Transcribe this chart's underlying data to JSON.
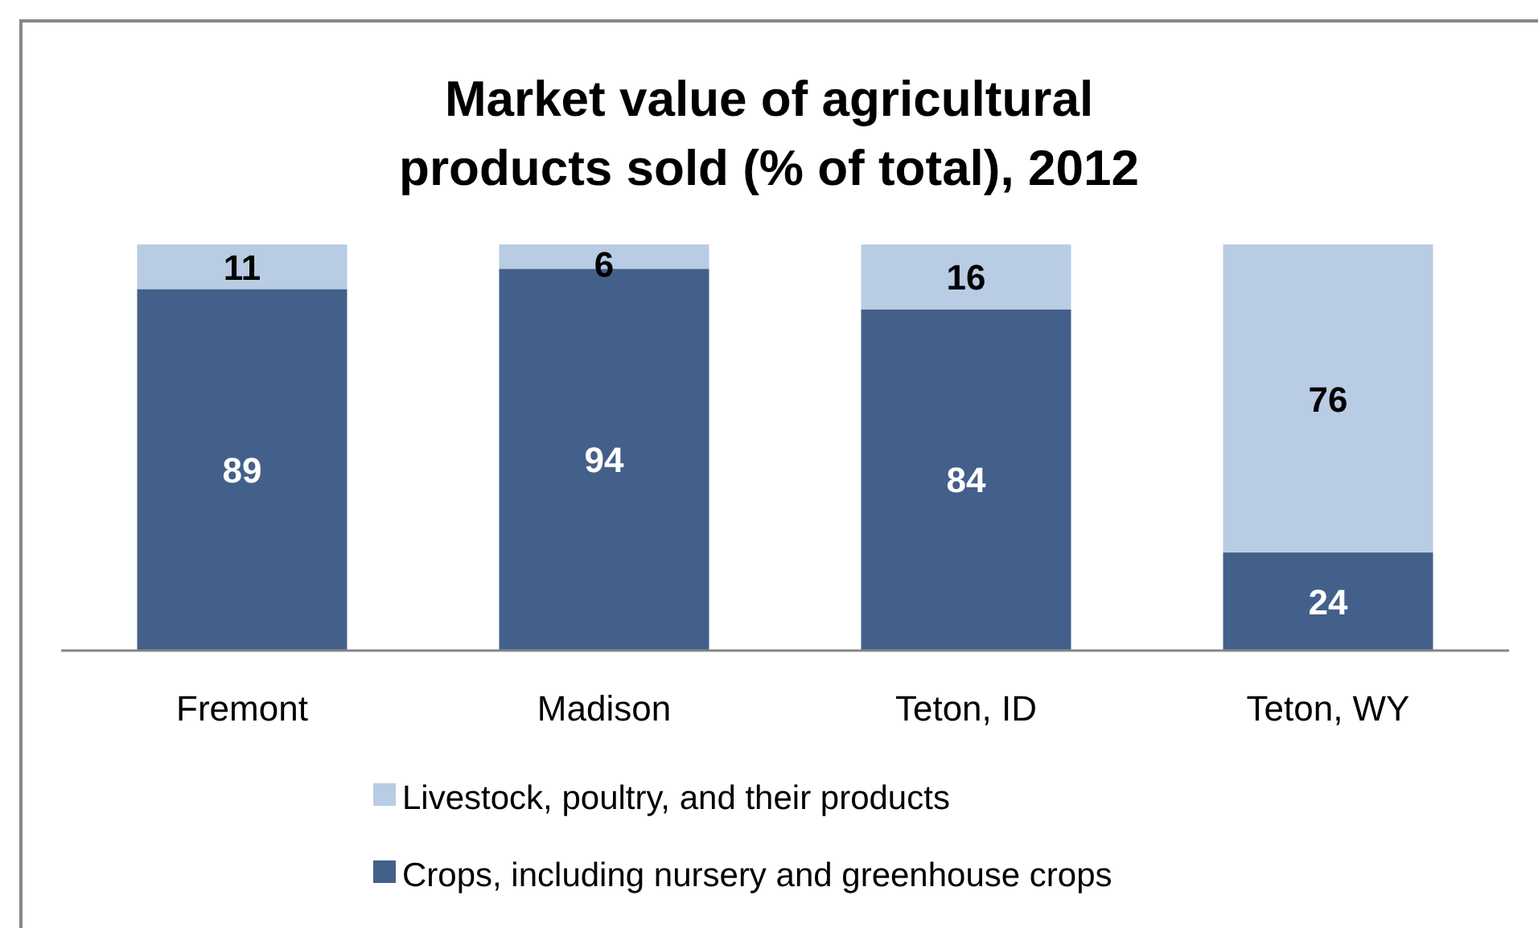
{
  "chart_data": {
    "type": "bar",
    "title": "Market value of agricultural products sold (% of total), 2012",
    "stacked": true,
    "categories": [
      "Fremont",
      "Madison",
      "Teton, ID",
      "Teton, WY"
    ],
    "series": [
      {
        "name": "Crops, including nursery and greenhouse crops",
        "color": "#43608a",
        "values": [
          89,
          94,
          84,
          24
        ]
      },
      {
        "name": "Livestock, poultry, and their products",
        "color": "#b8cce4",
        "values": [
          11,
          6,
          16,
          76
        ]
      }
    ],
    "data_labels": true,
    "legend": "bottom"
  }
}
